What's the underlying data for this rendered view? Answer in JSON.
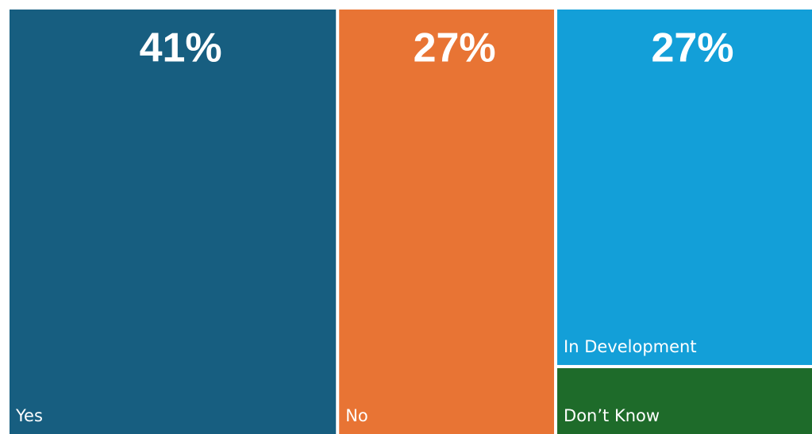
{
  "chart_data": {
    "type": "treemap",
    "categories": [
      "Yes",
      "No",
      "In Development",
      "Don’t Know"
    ],
    "values": [
      41,
      27,
      27,
      5
    ],
    "value_labels": [
      "41%",
      "27%",
      "27%",
      null
    ],
    "colors": [
      "#175e80",
      "#e87434",
      "#139fd8",
      "#1e6b2a"
    ]
  }
}
